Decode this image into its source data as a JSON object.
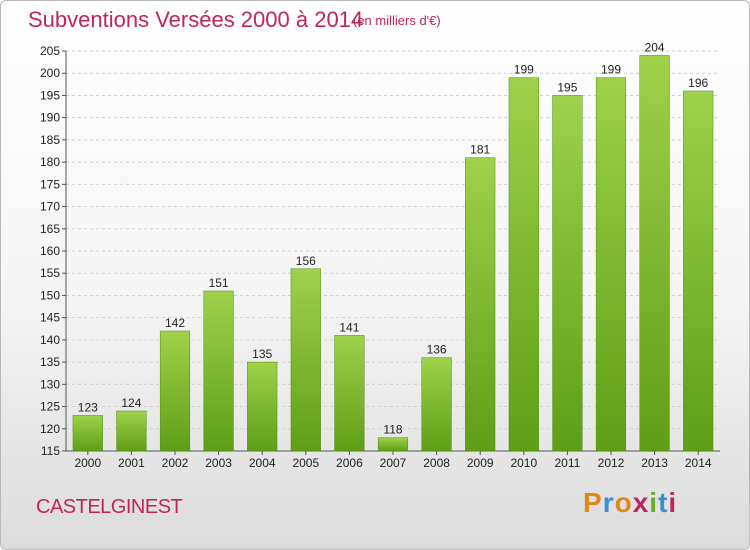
{
  "header": {
    "title": "Subventions Versées 2000 à 2014",
    "subtitle": "(en milliers d'€)"
  },
  "footer": {
    "location": "CASTELGINEST",
    "brand": "Proxiti",
    "brand_colors": [
      "#e0861a",
      "#3a8fd0",
      "#e0861a",
      "#c0245c",
      "#6aaa2a",
      "#3a8fd0",
      "#c0245c"
    ]
  },
  "colors": {
    "bar_top": "#9ed24a",
    "bar_bottom": "#5e9e16",
    "grid": "#cfcfcf",
    "title": "#c0245c"
  },
  "chart_data": {
    "type": "bar",
    "title": "Subventions Versées 2000 à 2014",
    "xlabel": "",
    "ylabel": "",
    "categories": [
      "2000",
      "2001",
      "2002",
      "2003",
      "2004",
      "2005",
      "2006",
      "2007",
      "2008",
      "2009",
      "2010",
      "2011",
      "2012",
      "2013",
      "2014"
    ],
    "values": [
      123,
      124,
      142,
      151,
      135,
      156,
      141,
      118,
      136,
      181,
      199,
      195,
      199,
      204,
      196
    ],
    "ylim": [
      115,
      205
    ],
    "yticks": [
      115,
      120,
      125,
      130,
      135,
      140,
      145,
      150,
      155,
      160,
      165,
      170,
      175,
      180,
      185,
      190,
      195,
      200,
      205
    ],
    "grid": true,
    "data_labels": true
  }
}
